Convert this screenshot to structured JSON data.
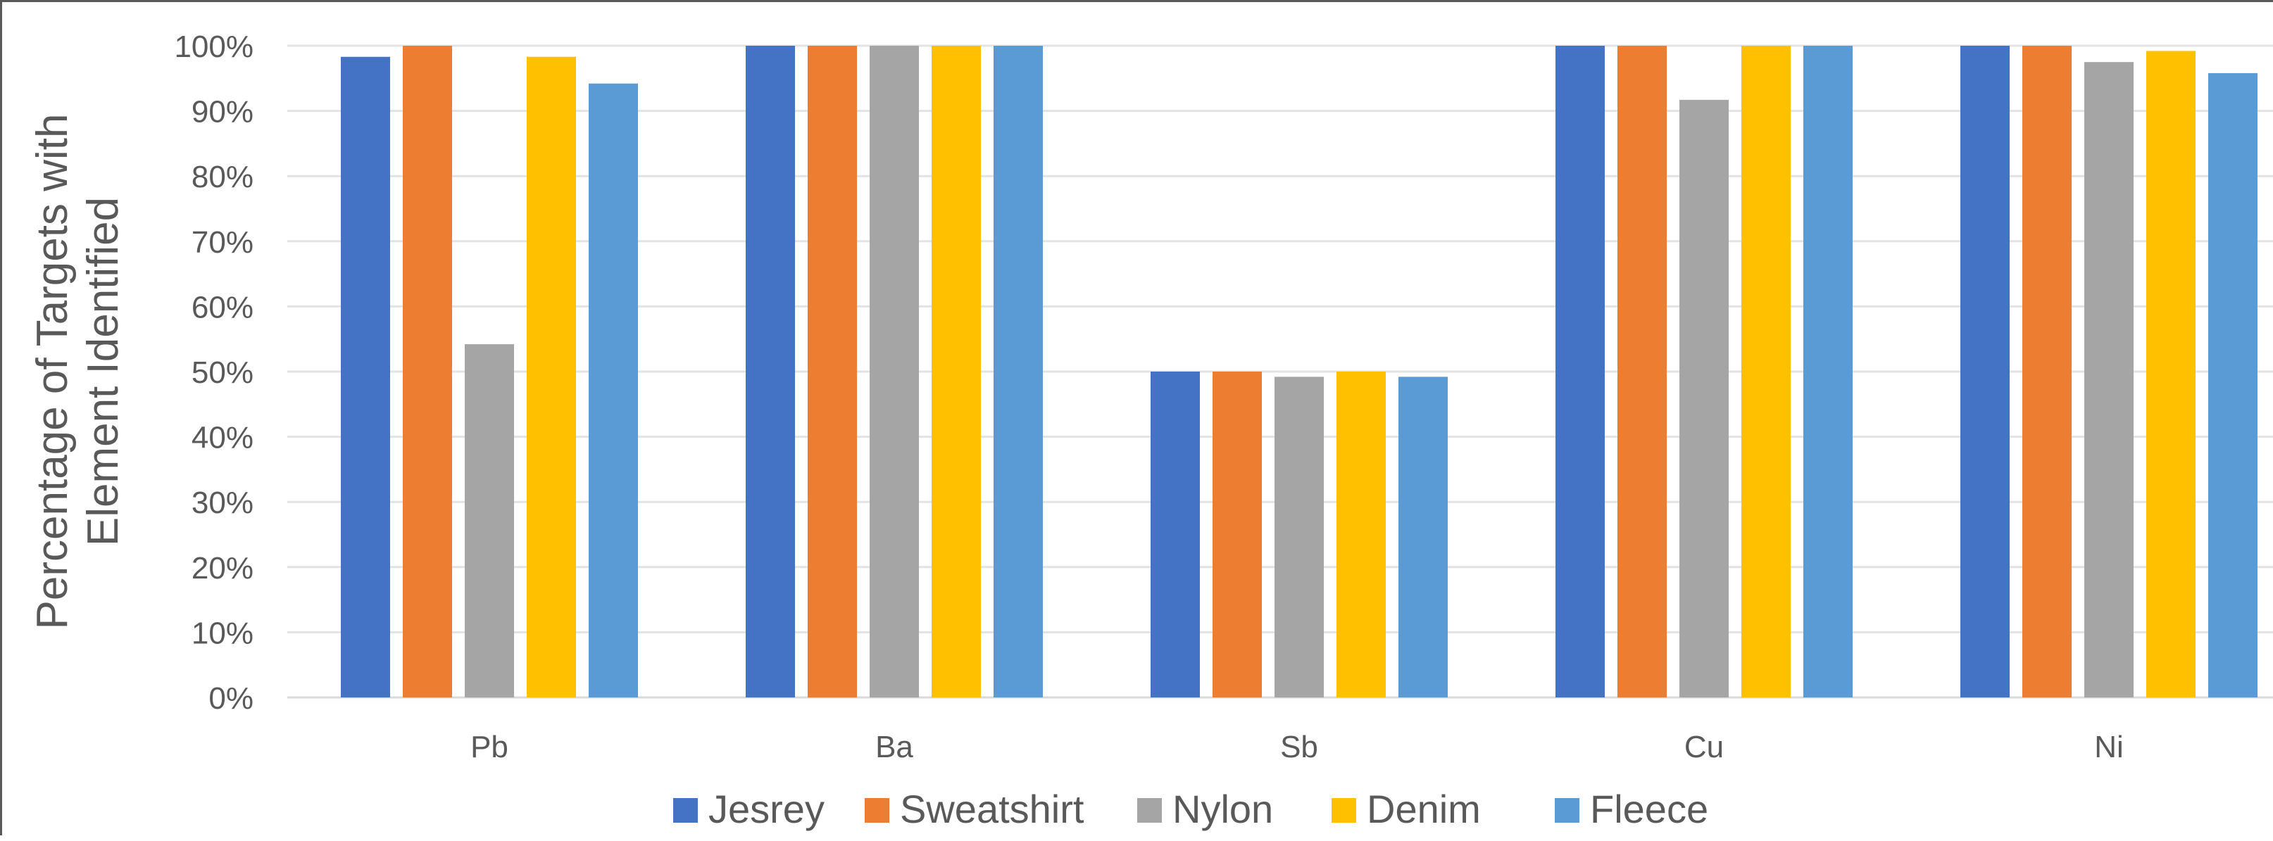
{
  "chart_data": {
    "type": "bar",
    "title": "",
    "xlabel": "",
    "ylabel": [
      "Percentage of Targets with",
      "Element Identified"
    ],
    "categories": [
      "Pb",
      "Ba",
      "Sb",
      "Cu",
      "Ni"
    ],
    "ylim": [
      0,
      100
    ],
    "yticks": [
      0,
      10,
      20,
      30,
      40,
      50,
      60,
      70,
      80,
      90,
      100
    ],
    "ytick_labels": [
      "0%",
      "10%",
      "20%",
      "30%",
      "40%",
      "50%",
      "60%",
      "70%",
      "80%",
      "90%",
      "100%"
    ],
    "grid": true,
    "legend_position": "bottom",
    "series": [
      {
        "name": "Jesrey",
        "color": "#4472C4",
        "values": [
          98.3,
          100,
          50,
          100,
          100
        ]
      },
      {
        "name": "Sweatshirt",
        "color": "#ED7D31",
        "values": [
          100,
          100,
          50,
          100,
          100
        ]
      },
      {
        "name": "Nylon",
        "color": "#A5A5A5",
        "values": [
          54.2,
          100,
          49.2,
          91.7,
          97.5
        ]
      },
      {
        "name": "Denim",
        "color": "#FFC000",
        "values": [
          98.3,
          100,
          50,
          100,
          99.2
        ]
      },
      {
        "name": "Fleece",
        "color": "#5B9BD5",
        "values": [
          94.2,
          100,
          49.2,
          100,
          95.8
        ]
      }
    ]
  }
}
